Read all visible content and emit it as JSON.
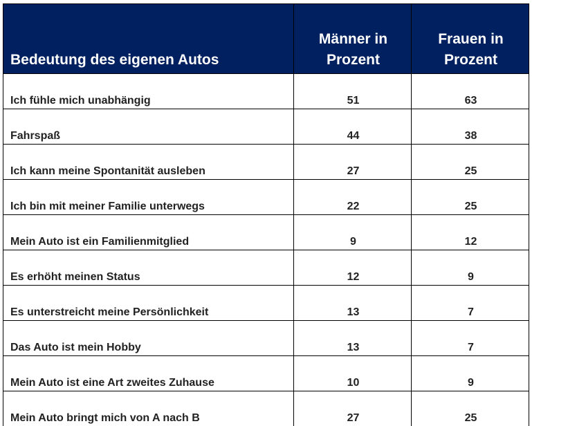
{
  "chart_data": {
    "type": "table",
    "columns": [
      "Bedeutung des eigenen Autos",
      "Männer in Prozent",
      "Frauen in Prozent"
    ],
    "rows": [
      {
        "label": "Ich fühle mich unabhängig",
        "men": "51",
        "women": "63"
      },
      {
        "label": "Fahrspaß",
        "men": "44",
        "women": "38"
      },
      {
        "label": "Ich kann meine Spontanität ausleben",
        "men": "27",
        "women": "25"
      },
      {
        "label": "Ich bin mit meiner Familie unterwegs",
        "men": "22",
        "women": "25"
      },
      {
        "label": "Mein Auto ist ein Familienmitglied",
        "men": "9",
        "women": "12"
      },
      {
        "label": "Es erhöht meinen Status",
        "men": "12",
        "women": "9"
      },
      {
        "label": "Es unterstreicht meine Persönlichkeit",
        "men": "13",
        "women": "7"
      },
      {
        "label": "Das Auto ist mein Hobby",
        "men": "13",
        "women": "7"
      },
      {
        "label": "Mein Auto ist eine Art zweites Zuhause",
        "men": "10",
        "women": "9"
      },
      {
        "label": "Mein Auto bringt mich von A nach B",
        "men": "27",
        "women": "25"
      }
    ]
  },
  "colors": {
    "header_bg": "#002060",
    "header_text": "#ffffff"
  }
}
